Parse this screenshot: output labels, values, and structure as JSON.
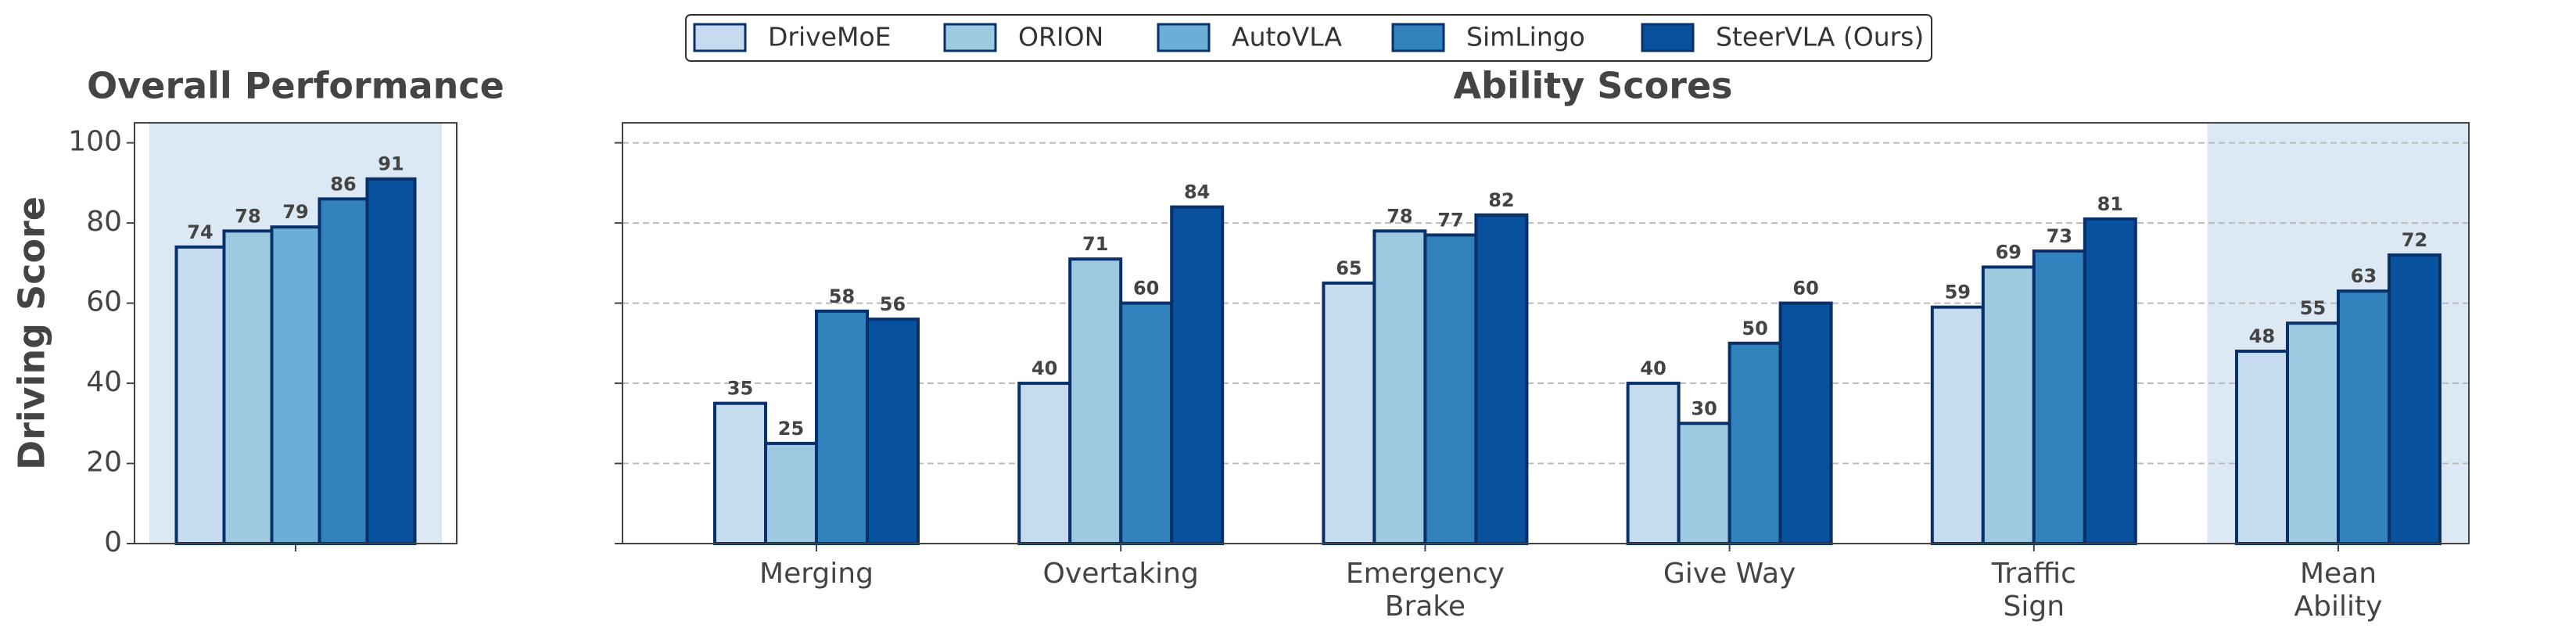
{
  "chart_data": [
    {
      "type": "bar",
      "title": "Overall Performance",
      "ylabel": "Driving Score",
      "categories": [
        null
      ],
      "series": [
        {
          "name": "DriveMoE",
          "color": "#c6dbef",
          "values": [
            74
          ]
        },
        {
          "name": "ORION",
          "color": "#9ecae1",
          "values": [
            78
          ]
        },
        {
          "name": "AutoVLA",
          "color": "#6baed6",
          "values": [
            79
          ]
        },
        {
          "name": "SimLingo",
          "color": "#3182bd",
          "values": [
            86
          ]
        },
        {
          "name": "SteerVLA (Ours)",
          "color": "#08519c",
          "values": [
            91
          ]
        }
      ],
      "ylim": [
        0,
        105
      ],
      "yticks": [
        0,
        20,
        40,
        60,
        80,
        100
      ],
      "grid": false,
      "highlight": [
        0
      ]
    },
    {
      "type": "bar",
      "title": "Ability Scores",
      "categories": [
        "Merging",
        "Overtaking",
        "Emergency\nBrake",
        "Give Way",
        "Traffic\nSign",
        "Mean\nAbility"
      ],
      "series": [
        {
          "values": [
            35,
            40,
            65,
            40,
            59,
            48
          ]
        },
        {
          "values": [
            25,
            71,
            78,
            30,
            69,
            55
          ]
        },
        {
          "values": [
            null,
            null,
            null,
            null,
            null,
            null
          ]
        },
        {
          "values": [
            58,
            60,
            77,
            50,
            73,
            63
          ]
        },
        {
          "values": [
            56,
            84,
            82,
            60,
            81,
            72
          ]
        }
      ],
      "ylim": [
        0,
        105
      ],
      "yticks": [
        0,
        20,
        40,
        60,
        80,
        100
      ],
      "grid": true,
      "highlight": [
        5
      ]
    }
  ]
}
